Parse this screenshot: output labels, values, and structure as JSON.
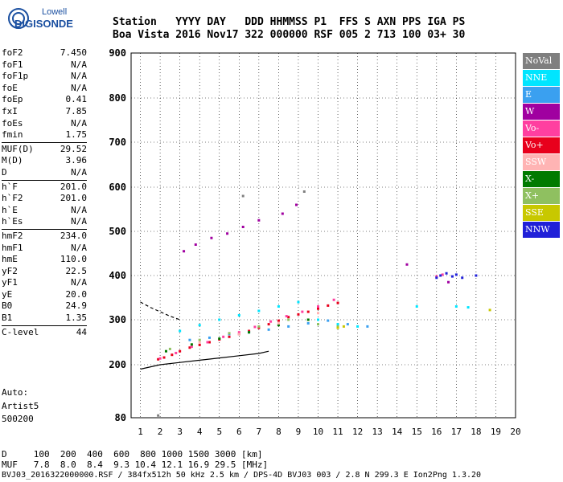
{
  "logo": {
    "line1": "Lowell",
    "line2": "DIGISONDE"
  },
  "header": {
    "row1": "Station   YYYY DAY   DDD HHMMSS P1  FFS S AXN PPS IGA PS",
    "row2": "Boa Vista 2016 Nov17 322 000000 RSF 005 2 713 100 03+ 30"
  },
  "params": {
    "group1": [
      {
        "name": "foF2",
        "value": "7.450"
      },
      {
        "name": "foF1",
        "value": "N/A"
      },
      {
        "name": "foF1p",
        "value": "N/A"
      },
      {
        "name": "foE",
        "value": "N/A"
      },
      {
        "name": "foEp",
        "value": "0.41"
      },
      {
        "name": "fxI",
        "value": "7.85"
      },
      {
        "name": "foEs",
        "value": "N/A"
      },
      {
        "name": "fmin",
        "value": "1.75"
      }
    ],
    "group2": [
      {
        "name": "MUF(D)",
        "value": "29.52"
      },
      {
        "name": "M(D)",
        "value": "3.96"
      },
      {
        "name": "D",
        "value": "N/A"
      }
    ],
    "group3": [
      {
        "name": "h`F",
        "value": "201.0"
      },
      {
        "name": "h`F2",
        "value": "201.0"
      },
      {
        "name": "h`E",
        "value": "N/A"
      },
      {
        "name": "h`Es",
        "value": "N/A"
      }
    ],
    "group4": [
      {
        "name": "hmF2",
        "value": "234.0"
      },
      {
        "name": "hmF1",
        "value": "N/A"
      },
      {
        "name": "hmE",
        "value": "110.0"
      },
      {
        "name": "yF2",
        "value": "22.5"
      },
      {
        "name": "yF1",
        "value": "N/A"
      },
      {
        "name": "yE",
        "value": "20.0"
      },
      {
        "name": "B0",
        "value": "24.9"
      },
      {
        "name": "B1",
        "value": "1.35"
      }
    ],
    "group5": [
      {
        "name": "C-level",
        "value": "44"
      }
    ]
  },
  "auto": {
    "line1": "Auto:",
    "line2": "Artist5",
    "line3": "500200"
  },
  "footer": {
    "row1": "D     100  200  400  600  800 1000 1500 3000 [km]",
    "row2": "MUF   7.8  8.0  8.4  9.3 10.4 12.1 16.9 29.5 [MHz]",
    "row3": "BVJ03_2016322000000.RSF / 384fx512h 50 kHz 2.5 km / DPS-4D BVJ03 003 / 2.8 N 299.3 E Ion2Png 1.3.20"
  },
  "legend": [
    {
      "label": "NoVal",
      "color": "#7f7f7f"
    },
    {
      "label": "NNE",
      "color": "#00e5ff"
    },
    {
      "label": "E",
      "color": "#3aa0f0"
    },
    {
      "label": "W",
      "color": "#a000a0"
    },
    {
      "label": "Vo-",
      "color": "#ff3fa0"
    },
    {
      "label": "Vo+",
      "color": "#e8001c"
    },
    {
      "label": "SSW",
      "color": "#ffb4b4"
    },
    {
      "label": "X-",
      "color": "#007a00"
    },
    {
      "label": "X+",
      "color": "#8fc060"
    },
    {
      "label": "SSE",
      "color": "#c8c800"
    },
    {
      "label": "NNW",
      "color": "#2020d8"
    }
  ],
  "chart_data": {
    "type": "scatter",
    "xlabel": "",
    "ylabel": "",
    "xlim": [
      0.7,
      20
    ],
    "ylim": [
      80,
      900
    ],
    "xticks": [
      1,
      2,
      3,
      4,
      5,
      6,
      7,
      8,
      9,
      10,
      11,
      12,
      13,
      14,
      15,
      16,
      17,
      18,
      19,
      20
    ],
    "yticks": [
      80,
      200,
      300,
      400,
      500,
      600,
      700,
      800,
      900
    ],
    "grid": true,
    "legend_position": "right",
    "series": [
      {
        "name": "Vo+",
        "color": "#e8001c",
        "x": [
          1.9,
          2.2,
          2.6,
          3.0,
          3.5,
          4.0,
          4.5,
          5.0,
          5.5,
          6.0,
          6.5,
          7.0,
          7.5,
          8.0,
          8.5,
          9.0,
          9.5,
          10.0,
          10.5,
          11.0
        ],
        "y": [
          212,
          216,
          222,
          230,
          238,
          244,
          250,
          256,
          262,
          268,
          275,
          282,
          290,
          298,
          306,
          312,
          318,
          325,
          332,
          338
        ]
      },
      {
        "name": "Vo-",
        "color": "#ff3fa0",
        "x": [
          2.0,
          2.8,
          3.6,
          4.4,
          5.2,
          6.0,
          6.8,
          7.6,
          8.4,
          9.2,
          10.0,
          10.8,
          16.0,
          16.3
        ],
        "y": [
          214,
          226,
          240,
          250,
          262,
          272,
          284,
          296,
          308,
          318,
          330,
          345,
          398,
          402
        ]
      },
      {
        "name": "NNE",
        "color": "#00e5ff",
        "x": [
          3.0,
          4.0,
          5.0,
          6.0,
          7.0,
          8.0,
          9.0,
          10.0,
          11.0,
          12.0,
          15.0,
          17.0,
          17.6
        ],
        "y": [
          275,
          288,
          300,
          310,
          320,
          330,
          340,
          300,
          290,
          285,
          330,
          330,
          328
        ]
      },
      {
        "name": "E",
        "color": "#3aa0f0",
        "x": [
          3.5,
          4.5,
          5.5,
          6.5,
          7.5,
          8.5,
          9.5,
          10.5,
          11.5,
          12.5
        ],
        "y": [
          255,
          260,
          268,
          272,
          278,
          285,
          292,
          298,
          290,
          285
        ]
      },
      {
        "name": "W",
        "color": "#a000a0",
        "x": [
          3.2,
          3.8,
          4.6,
          5.4,
          6.2,
          7.0,
          8.2,
          8.9,
          14.5,
          16.6
        ],
        "y": [
          455,
          470,
          485,
          495,
          510,
          525,
          540,
          560,
          425,
          385
        ]
      },
      {
        "name": "NNW",
        "color": "#2020d8",
        "x": [
          16.0,
          16.2,
          16.5,
          16.8,
          17.0,
          17.3,
          18.0
        ],
        "y": [
          395,
          400,
          405,
          398,
          402,
          395,
          400
        ]
      },
      {
        "name": "X+",
        "color": "#8fc060",
        "x": [
          2.5,
          4.0,
          5.5,
          7.0,
          8.5,
          10.0,
          11.0
        ],
        "y": [
          235,
          255,
          270,
          285,
          300,
          290,
          285
        ]
      },
      {
        "name": "X-",
        "color": "#007a00",
        "x": [
          2.3,
          3.6,
          5.0,
          6.5,
          8.0,
          9.5
        ],
        "y": [
          230,
          245,
          258,
          272,
          288,
          300
        ]
      },
      {
        "name": "SSE",
        "color": "#c8c800",
        "x": [
          11.0,
          11.3,
          18.7
        ],
        "y": [
          282,
          285,
          322
        ]
      },
      {
        "name": "SSW",
        "color": "#ffb4b4",
        "x": [
          4.0,
          6.0,
          8.0,
          10.0
        ],
        "y": [
          250,
          268,
          292,
          315
        ]
      },
      {
        "name": "NoVal",
        "color": "#7f7f7f",
        "x": [
          1.9,
          6.2,
          9.3
        ],
        "y": [
          85,
          580,
          590
        ]
      }
    ],
    "profile_curve": {
      "x": [
        1.0,
        2.0,
        3.0,
        4.0,
        5.0,
        6.0,
        7.0,
        7.5
      ],
      "y": [
        190,
        200,
        205,
        210,
        215,
        220,
        225,
        230
      ]
    },
    "extraordinary_curve": {
      "x": [
        1.0,
        1.5,
        2.0,
        2.5,
        3.0
      ],
      "y": [
        340,
        328,
        318,
        308,
        300
      ]
    }
  }
}
